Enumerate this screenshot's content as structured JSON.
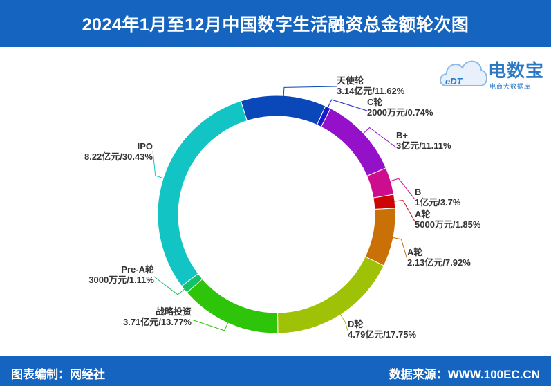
{
  "header": {
    "title": "2024年1月至12月中国数字生活融资总金额轮次图"
  },
  "footer": {
    "left": "图表编制：网经社",
    "right": "数据来源：WWW.100EC.CN"
  },
  "logo": {
    "text": "电数宝",
    "sub": "电商大数据库",
    "mark": "eDT",
    "icon": "cloud-logo-icon"
  },
  "chart_data": {
    "type": "pie",
    "title": "2024年1月至12月中国数字生活融资总金额轮次图",
    "slices": [
      {
        "name": "天使轮",
        "amount": "3.14亿元",
        "percent": 11.62,
        "label": "3.14亿元/11.62%",
        "color": "#0a47b8"
      },
      {
        "name": "C轮",
        "amount": "2000万元",
        "percent": 0.74,
        "label": "2000万元/0.74%",
        "color": "#1a18c8"
      },
      {
        "name": "B+",
        "amount": "3亿元",
        "percent": 11.11,
        "label": "3亿元/11.11%",
        "color": "#9411c9"
      },
      {
        "name": "B",
        "amount": "1亿元",
        "percent": 3.7,
        "label": "1亿元/3.7%",
        "color": "#cc0e8e"
      },
      {
        "name": "A轮",
        "amount": "5000万元",
        "percent": 1.85,
        "label": "5000万元/1.85%",
        "color": "#cc0505"
      },
      {
        "name": "A轮",
        "amount": "2.13亿元",
        "percent": 7.92,
        "label": "2.13亿元/7.92%",
        "color": "#c97106"
      },
      {
        "name": "D轮",
        "amount": "4.79亿元",
        "percent": 17.75,
        "label": "4.79亿元/17.75%",
        "color": "#9fc206"
      },
      {
        "name": "战略投资",
        "amount": "3.71亿元",
        "percent": 13.77,
        "label": "3.71亿元/13.77%",
        "color": "#2ec40a"
      },
      {
        "name": "Pre-A轮",
        "amount": "3000万元",
        "percent": 1.11,
        "label": "3000万元/1.11%",
        "color": "#14c265"
      },
      {
        "name": "IPO",
        "amount": "8.22亿元",
        "percent": 30.43,
        "label": "8.22亿元/30.43%",
        "color": "#12c4c4"
      }
    ]
  }
}
